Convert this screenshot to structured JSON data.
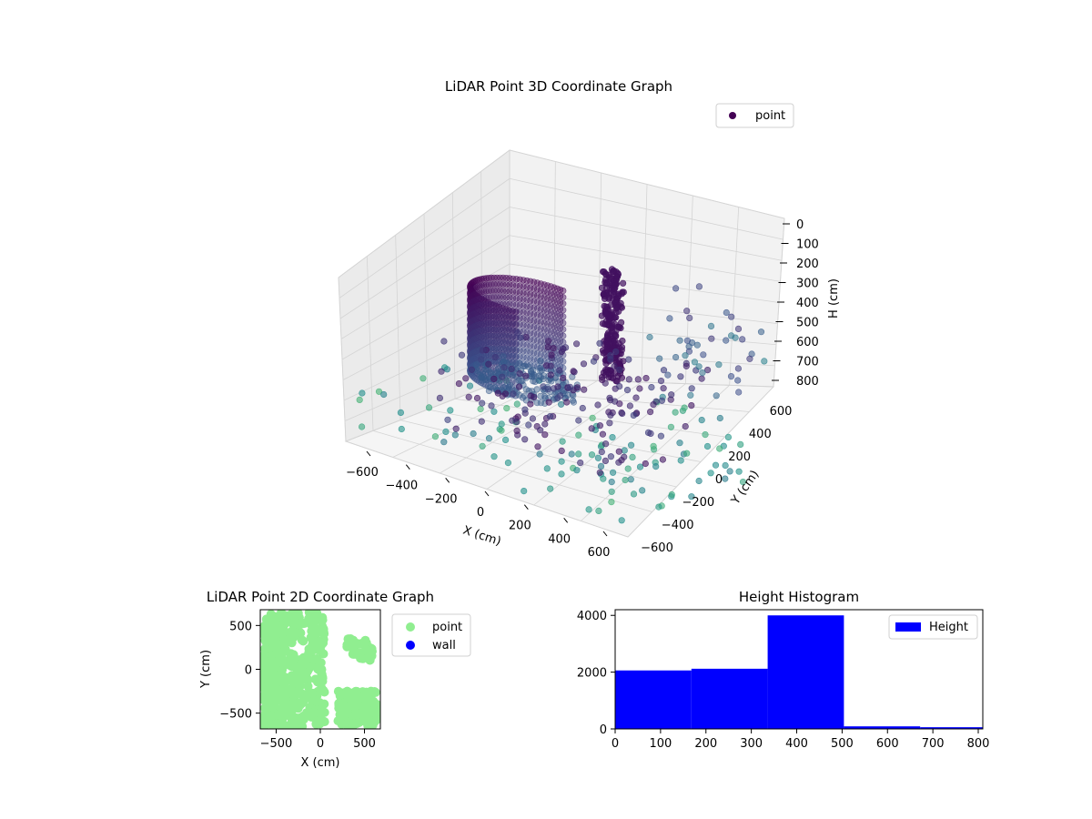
{
  "chart_data": [
    {
      "type": "scatter",
      "title": "LiDAR Point 3D Coordinate Graph",
      "xlabel": "X (cm)",
      "ylabel": "Y (cm)",
      "zlabel": "H (cm)",
      "xticks": [
        "−600",
        "−400",
        "−200",
        "0",
        "200",
        "400",
        "600"
      ],
      "yticks": [
        "−600",
        "−400",
        "−200",
        "0",
        "200",
        "400",
        "600"
      ],
      "zticks": [
        "0",
        "100",
        "200",
        "300",
        "400",
        "500",
        "600",
        "700",
        "800"
      ],
      "zlim_inverted": [
        0,
        800
      ],
      "colormap": "viridis",
      "legend": {
        "position": "top-right",
        "entries": [
          {
            "label": "point",
            "color": "#440154"
          }
        ]
      },
      "structures": [
        {
          "name": "cylindrical-wall",
          "cx": -150,
          "cy": 0,
          "radius": 250,
          "h_min": 250,
          "h_max": 550
        },
        {
          "name": "dense-column",
          "x": 150,
          "y": 200,
          "h_min": 100,
          "h_max": 500
        }
      ]
    },
    {
      "type": "scatter",
      "title": "LiDAR Point 2D Coordinate Graph",
      "xlabel": "X (cm)",
      "ylabel": "Y (cm)",
      "xticks": [
        "−500",
        "0",
        "500"
      ],
      "yticks": [
        "500",
        "0",
        "−500"
      ],
      "xlim": [
        -680,
        680
      ],
      "ylim": [
        -680,
        680
      ],
      "legend": {
        "position": "right",
        "entries": [
          {
            "label": "point",
            "color": "#90ee90"
          },
          {
            "label": "wall",
            "color": "#0000ff"
          }
        ]
      }
    },
    {
      "type": "bar",
      "title": "Height Histogram",
      "xlabel": "",
      "ylabel": "",
      "xticks": [
        "0",
        "100",
        "200",
        "300",
        "400",
        "500",
        "600",
        "700",
        "800"
      ],
      "yticks": [
        "0",
        "2000",
        "4000"
      ],
      "xlim": [
        0,
        810
      ],
      "ylim": [
        0,
        4200
      ],
      "bins": [
        {
          "x0": 0,
          "x1": 168,
          "count": 2060
        },
        {
          "x0": 168,
          "x1": 336,
          "count": 2120
        },
        {
          "x0": 336,
          "x1": 504,
          "count": 4000
        },
        {
          "x0": 504,
          "x1": 672,
          "count": 90
        },
        {
          "x0": 672,
          "x1": 810,
          "count": 60
        }
      ],
      "bar_color": "#0000ff",
      "legend": {
        "position": "top-right",
        "entries": [
          {
            "label": "Height",
            "color": "#0000ff"
          }
        ]
      }
    }
  ]
}
